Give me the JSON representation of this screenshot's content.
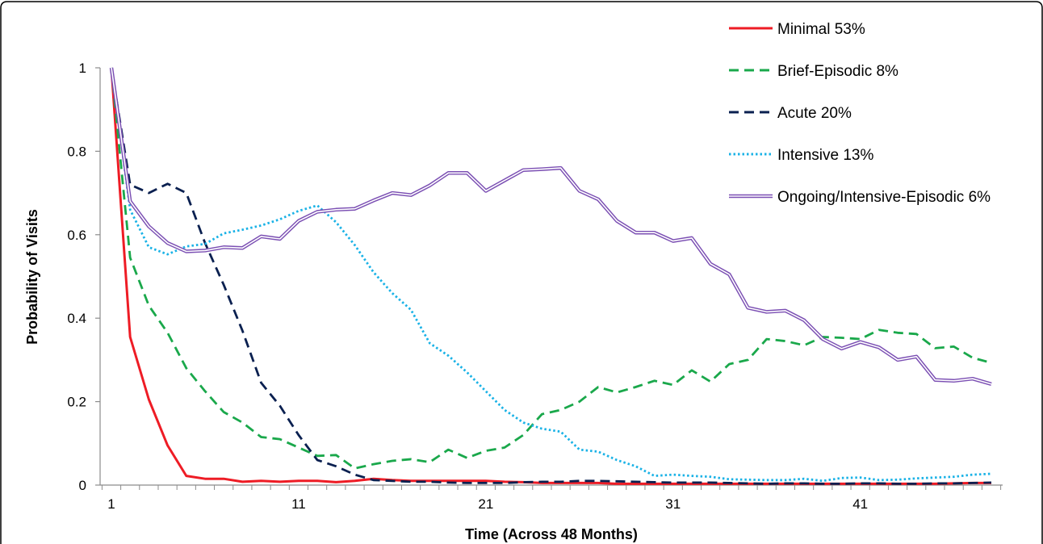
{
  "chart_data": {
    "type": "line",
    "title": "",
    "xlabel": "Time (Across 48 Months)",
    "ylabel": "Probability of Visits",
    "xlim": [
      1,
      48
    ],
    "ylim": [
      0,
      1
    ],
    "x_ticks": [
      "1",
      "11",
      "21",
      "31",
      "41"
    ],
    "y_ticks": [
      "0",
      "0.2",
      "0.4",
      "0.6",
      "0.8",
      "1"
    ],
    "grid": false,
    "legend_position": "top-right",
    "x": [
      1,
      2,
      3,
      4,
      5,
      6,
      7,
      8,
      9,
      10,
      11,
      12,
      13,
      14,
      15,
      16,
      17,
      18,
      19,
      20,
      21,
      22,
      23,
      24,
      25,
      26,
      27,
      28,
      29,
      30,
      31,
      32,
      33,
      34,
      35,
      36,
      37,
      38,
      39,
      40,
      41,
      42,
      43,
      44,
      45,
      46,
      47,
      48
    ],
    "series": [
      {
        "name": "Minimal 53%",
        "color": "#ee1c25",
        "style": "solid",
        "values": [
          1.0,
          0.355,
          0.205,
          0.095,
          0.022,
          0.015,
          0.015,
          0.008,
          0.01,
          0.008,
          0.01,
          0.01,
          0.007,
          0.01,
          0.015,
          0.012,
          0.01,
          0.01,
          0.01,
          0.01,
          0.01,
          0.008,
          0.007,
          0.005,
          0.005,
          0.005,
          0.005,
          0.003,
          0.003,
          0.003,
          0.003,
          0.003,
          0.003,
          0.003,
          0.003,
          0.003,
          0.003,
          0.003,
          0.003,
          0.003,
          0.003,
          0.003,
          0.003,
          0.003,
          0.003,
          0.004,
          0.005,
          0.005
        ]
      },
      {
        "name": "Brief-Episodic 8%",
        "color": "#1aa84b",
        "style": "dashed",
        "values": [
          1.0,
          0.545,
          0.43,
          0.365,
          0.28,
          0.225,
          0.175,
          0.15,
          0.115,
          0.11,
          0.09,
          0.07,
          0.072,
          0.04,
          0.05,
          0.058,
          0.062,
          0.055,
          0.085,
          0.065,
          0.082,
          0.09,
          0.12,
          0.17,
          0.18,
          0.2,
          0.235,
          0.222,
          0.235,
          0.25,
          0.24,
          0.275,
          0.248,
          0.29,
          0.3,
          0.35,
          0.345,
          0.335,
          0.355,
          0.353,
          0.35,
          0.372,
          0.365,
          0.362,
          0.328,
          0.332,
          0.305,
          0.293
        ]
      },
      {
        "name": "Acute 20%",
        "color": "#0a2050",
        "style": "dashed",
        "values": [
          1.0,
          0.72,
          0.7,
          0.722,
          0.7,
          0.58,
          0.48,
          0.37,
          0.245,
          0.19,
          0.12,
          0.06,
          0.045,
          0.025,
          0.012,
          0.01,
          0.008,
          0.008,
          0.006,
          0.005,
          0.005,
          0.005,
          0.007,
          0.008,
          0.008,
          0.01,
          0.01,
          0.009,
          0.008,
          0.007,
          0.006,
          0.006,
          0.006,
          0.005,
          0.004,
          0.003,
          0.004,
          0.004,
          0.003,
          0.003,
          0.004,
          0.004,
          0.003,
          0.003,
          0.004,
          0.004,
          0.005,
          0.006
        ]
      },
      {
        "name": "Intensive 13%",
        "color": "#1ab2e6",
        "style": "dotted",
        "values": [
          1.0,
          0.66,
          0.57,
          0.553,
          0.572,
          0.578,
          0.603,
          0.612,
          0.622,
          0.637,
          0.657,
          0.67,
          0.63,
          0.575,
          0.51,
          0.46,
          0.42,
          0.34,
          0.31,
          0.27,
          0.225,
          0.18,
          0.15,
          0.135,
          0.128,
          0.085,
          0.08,
          0.06,
          0.045,
          0.022,
          0.025,
          0.022,
          0.02,
          0.014,
          0.013,
          0.012,
          0.012,
          0.015,
          0.01,
          0.017,
          0.018,
          0.012,
          0.013,
          0.016,
          0.018,
          0.02,
          0.025,
          0.027
        ]
      },
      {
        "name": "Ongoing/Intensive-Episodic 6%",
        "color": "#7b4fb3",
        "style": "double",
        "values": [
          1.0,
          0.68,
          0.62,
          0.58,
          0.56,
          0.562,
          0.57,
          0.568,
          0.596,
          0.59,
          0.633,
          0.655,
          0.66,
          0.662,
          0.682,
          0.7,
          0.695,
          0.718,
          0.748,
          0.748,
          0.705,
          0.73,
          0.755,
          0.757,
          0.76,
          0.705,
          0.685,
          0.633,
          0.605,
          0.605,
          0.585,
          0.592,
          0.53,
          0.505,
          0.425,
          0.415,
          0.418,
          0.395,
          0.35,
          0.327,
          0.343,
          0.33,
          0.3,
          0.308,
          0.252,
          0.25,
          0.255,
          0.242
        ]
      }
    ]
  }
}
